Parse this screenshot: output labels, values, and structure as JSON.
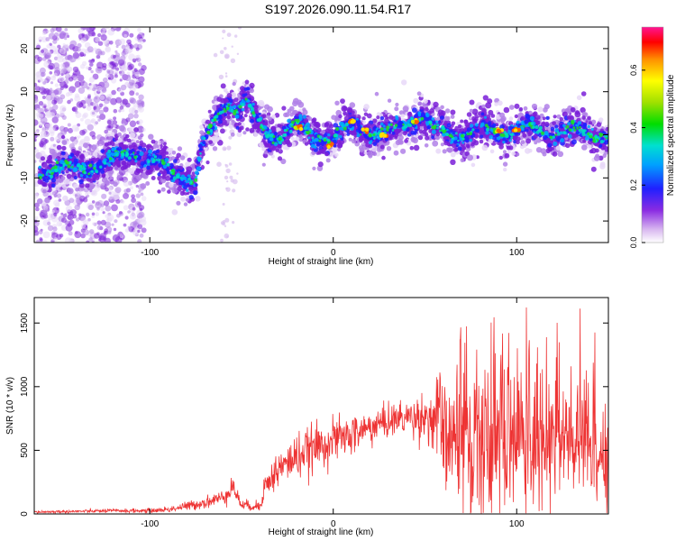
{
  "title": "S197.2026.090.11.54.R17",
  "chart_data": [
    {
      "type": "heatmap",
      "xlabel": "Height of straight line (km)",
      "ylabel": "Frequency (Hz)",
      "xlim": [
        -163,
        150
      ],
      "ylim": [
        -25,
        25
      ],
      "xticks": [
        -100,
        0,
        100
      ],
      "yticks": [
        -20,
        -10,
        0,
        10,
        20
      ],
      "colorbar": {
        "label": "Normalized spectral amplitude",
        "range": [
          0.0,
          0.75
        ],
        "ticks": [
          "0.0",
          "0.2",
          "0.4",
          "0.6"
        ]
      },
      "ridge": {
        "x": [
          -160,
          -145,
          -130,
          -120,
          -110,
          -105,
          -100,
          -90,
          -80,
          -75,
          -72,
          -68,
          -62,
          -57,
          -52,
          -48,
          -42,
          -35,
          -28,
          -20,
          -12,
          -5,
          0,
          10,
          20,
          30,
          40,
          48,
          55,
          65,
          80,
          100,
          120,
          150
        ],
        "freq": [
          -8,
          -8,
          -7,
          -6,
          -4,
          -4,
          -6,
          -8,
          -10,
          -11,
          -4,
          0,
          5,
          8,
          5,
          8,
          3,
          0,
          0,
          2,
          0,
          0,
          -1,
          2,
          1,
          0,
          3,
          5,
          1,
          0,
          1,
          1,
          1,
          0
        ]
      }
    },
    {
      "type": "line",
      "xlabel": "Height of straight line (km)",
      "ylabel": "SNR (10 * v/v)",
      "xlim": [
        -163,
        150
      ],
      "ylim": [
        0,
        1700
      ],
      "xticks": [
        -100,
        0,
        100
      ],
      "yticks": [
        0,
        500,
        1000,
        1500
      ],
      "color": "#ee3333",
      "envelope": {
        "x": [
          -163,
          -140,
          -120,
          -100,
          -90,
          -80,
          -70,
          -60,
          -55,
          -50,
          -40,
          -38,
          -30,
          -20,
          -10,
          0,
          10,
          20,
          30,
          40,
          50,
          60,
          62,
          80,
          100,
          120,
          150
        ],
        "mean": [
          15,
          20,
          25,
          25,
          35,
          60,
          90,
          130,
          220,
          70,
          60,
          200,
          350,
          450,
          520,
          580,
          620,
          680,
          730,
          760,
          770,
          690,
          580,
          600,
          600,
          560,
          520
        ],
        "spread": [
          10,
          10,
          12,
          15,
          20,
          30,
          40,
          50,
          80,
          30,
          40,
          90,
          120,
          150,
          150,
          140,
          130,
          120,
          110,
          120,
          150,
          400,
          550,
          550,
          500,
          450,
          450
        ]
      }
    }
  ]
}
